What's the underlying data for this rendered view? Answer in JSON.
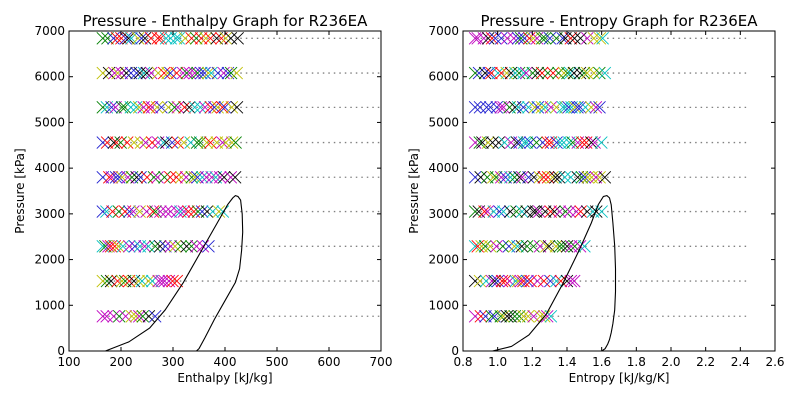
{
  "chart_data": [
    {
      "type": "scatter",
      "title": "Pressure - Enthalpy Graph for R236EA",
      "xlabel": "Enthalpy [kJ/kg]",
      "ylabel": "Pressure [kPa]",
      "xlim": [
        100,
        700
      ],
      "ylim": [
        0,
        7000
      ],
      "x_ticks": [
        "100",
        "200",
        "300",
        "400",
        "500",
        "600",
        "700"
      ],
      "y_ticks": [
        "0",
        "1000",
        "2000",
        "3000",
        "4000",
        "5000",
        "6000",
        "7000"
      ],
      "grid": false,
      "isobar_pressures": [
        760,
        1530,
        2290,
        3050,
        3800,
        4560,
        5330,
        6080,
        6840
      ],
      "isobar_x_range": [
        165,
        700
      ],
      "marker_rows": [
        {
          "pressure": 760,
          "x_min": 165,
          "x_max": 270
        },
        {
          "pressure": 1530,
          "x_min": 165,
          "x_max": 320
        },
        {
          "pressure": 2290,
          "x_min": 165,
          "x_max": 380
        },
        {
          "pressure": 3050,
          "x_min": 165,
          "x_max": 400
        },
        {
          "pressure": 3800,
          "x_min": 165,
          "x_max": 425
        },
        {
          "pressure": 4560,
          "x_min": 165,
          "x_max": 425
        },
        {
          "pressure": 5330,
          "x_min": 165,
          "x_max": 425
        },
        {
          "pressure": 6080,
          "x_min": 165,
          "x_max": 425
        },
        {
          "pressure": 6840,
          "x_min": 165,
          "x_max": 425
        }
      ],
      "saturation_dome": {
        "x": [
          170,
          215,
          255,
          285,
          320,
          355,
          385,
          405,
          415,
          420,
          425,
          430,
          433,
          434,
          432,
          428,
          420,
          400,
          380,
          362,
          350,
          345
        ],
        "y": [
          0,
          200,
          500,
          900,
          1500,
          2200,
          2800,
          3200,
          3350,
          3400,
          3380,
          3300,
          3000,
          2600,
          2200,
          1800,
          1500,
          1100,
          700,
          300,
          50,
          0
        ]
      }
    },
    {
      "type": "scatter",
      "title": "Pressure - Entropy Graph for R236EA",
      "xlabel": "Entropy [kJ/kg/K]",
      "ylabel": "Pressure [kPa]",
      "xlim": [
        0.8,
        2.6
      ],
      "ylim": [
        0,
        7000
      ],
      "x_ticks": [
        "0.8",
        "1.0",
        "1.2",
        "1.4",
        "1.6",
        "1.8",
        "2.0",
        "2.2",
        "2.4",
        "2.6"
      ],
      "y_ticks": [
        "0",
        "1000",
        "2000",
        "3000",
        "4000",
        "5000",
        "6000",
        "7000"
      ],
      "grid": false,
      "isobar_pressures": [
        760,
        1530,
        2290,
        3050,
        3800,
        4560,
        5330,
        6080,
        6840
      ],
      "isobar_x_range": [
        0.87,
        2.45
      ],
      "marker_rows": [
        {
          "pressure": 760,
          "x_min": 0.87,
          "x_max": 1.32
        },
        {
          "pressure": 1530,
          "x_min": 0.87,
          "x_max": 1.45
        },
        {
          "pressure": 2290,
          "x_min": 0.87,
          "x_max": 1.52
        },
        {
          "pressure": 3050,
          "x_min": 0.87,
          "x_max": 1.6
        },
        {
          "pressure": 3800,
          "x_min": 0.87,
          "x_max": 1.62
        },
        {
          "pressure": 4560,
          "x_min": 0.87,
          "x_max": 1.62
        },
        {
          "pressure": 5330,
          "x_min": 0.87,
          "x_max": 1.62
        },
        {
          "pressure": 6080,
          "x_min": 0.87,
          "x_max": 1.62
        },
        {
          "pressure": 6840,
          "x_min": 0.87,
          "x_max": 1.62
        }
      ],
      "saturation_dome": {
        "x": [
          0.97,
          1.08,
          1.18,
          1.28,
          1.38,
          1.47,
          1.54,
          1.58,
          1.61,
          1.63,
          1.645,
          1.655,
          1.665,
          1.675,
          1.68,
          1.68,
          1.675,
          1.665,
          1.655,
          1.645,
          1.635,
          1.62,
          1.6
        ],
        "y": [
          0,
          100,
          350,
          800,
          1500,
          2200,
          2800,
          3200,
          3380,
          3400,
          3350,
          3200,
          2800,
          2300,
          1800,
          1300,
          900,
          600,
          400,
          250,
          150,
          50,
          0
        ]
      }
    }
  ],
  "marker_colors": [
    "#1f1fd0",
    "#008000",
    "#ff0000",
    "#00bfbf",
    "#bf00bf",
    "#bfbf00",
    "#000000"
  ]
}
